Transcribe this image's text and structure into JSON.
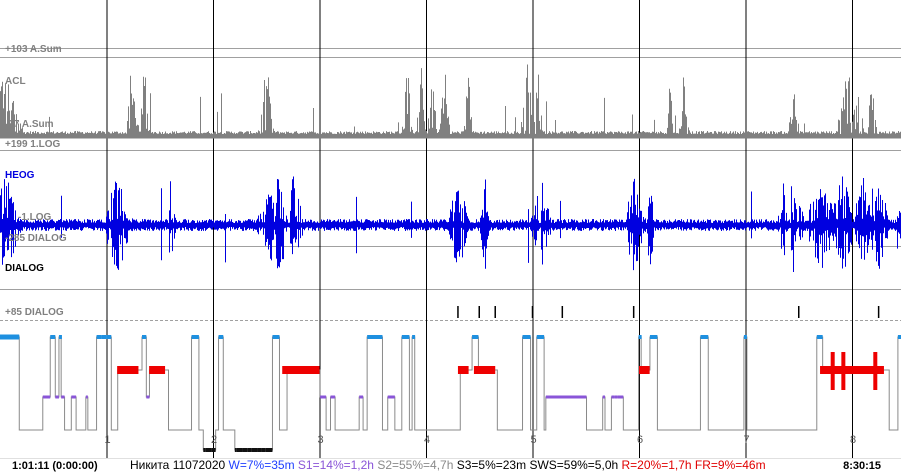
{
  "status": {
    "start_time": "1:01:11 (0:00:00)",
    "end_time": "8:30:15",
    "summary": [
      {
        "text": "Никита 11072020 ",
        "color": "#000000"
      },
      {
        "text": "W=7%=35m ",
        "color": "#2040ff"
      },
      {
        "text": "S1=14%=1,2h ",
        "color": "#8a55d8"
      },
      {
        "text": "S2=55%=4,7h ",
        "color": "#8a8a8a"
      },
      {
        "text": "S3=5%=23m ",
        "color": "#000000"
      },
      {
        "text": "SWS=59%=5,0h ",
        "color": "#000000"
      },
      {
        "text": "R=20%=1,7h ",
        "color": "#e00000"
      },
      {
        "text": "FR=9%=46m",
        "color": "#e00000"
      }
    ]
  },
  "channels": {
    "acl_top": "+103 A.Sum",
    "acl": "ACL",
    "acl_bottom": "-97 A.Sum",
    "heog_top": "+199 1.LOG",
    "heog": "HEOG",
    "heog_mid": "-1.LOG",
    "dialog_top": "-285 DIALOG",
    "dialog": "DIALOG",
    "dialog_bottom": "+85 DIALOG"
  },
  "colors": {
    "acl": "#808080",
    "heog": "#0000e0",
    "wake": "#1e90e0",
    "s1": "#8a55d8",
    "s2": "#808080",
    "rem": "#ee0000",
    "deep": "#111111"
  },
  "chart_data": {
    "type": "line",
    "title": "",
    "x_unit": "hours",
    "x_ticks": [
      "1",
      "2",
      "3",
      "4",
      "5",
      "6",
      "7",
      "8"
    ],
    "x_range_hours": [
      0,
      8.5
    ],
    "series": [
      {
        "name": "ACL",
        "values_description": "activity sum with bursts at ~0.0, 1.3, 2.5, 3.8-4.2, 4.9, 6.3-6.4, 7.9-8.2"
      },
      {
        "name": "HEOG",
        "values_description": "eye movement signal with bursts at ~1.0, 2.5-2.8, 4.2-4.3, 5.1, 7.8-8.5"
      }
    ],
    "hypnogram": {
      "stages": [
        "W",
        "REM",
        "S1",
        "S2",
        "S3"
      ],
      "rem_periods_hours": [
        [
          1.1,
          1.3
        ],
        [
          1.4,
          1.55
        ],
        [
          2.65,
          3.0
        ],
        [
          4.3,
          4.4
        ],
        [
          4.45,
          4.65
        ],
        [
          6.0,
          6.1
        ],
        [
          7.7,
          8.3
        ]
      ],
      "s3_periods_hours": [
        [
          1.9,
          2.0
        ],
        [
          2.2,
          2.5
        ]
      ]
    }
  }
}
